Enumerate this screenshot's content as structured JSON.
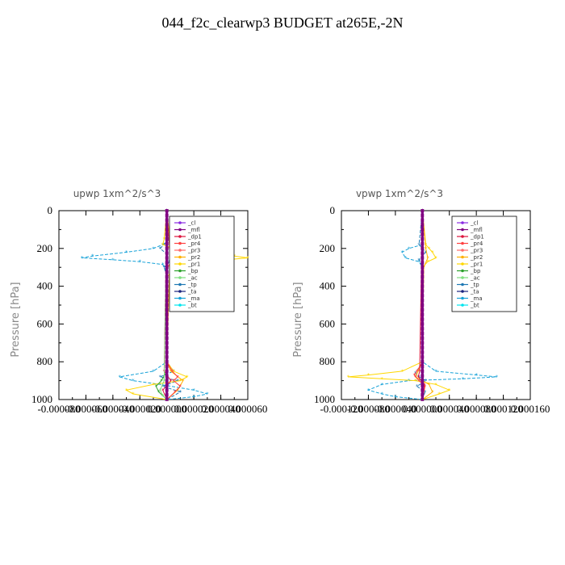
{
  "title": "044_f2c_clearwp3  BUDGET at265E,-2N",
  "legend_labels": [
    "_cl",
    "_mfl",
    "_dp1",
    "_pr4",
    "_pr3",
    "_pr2",
    "_pr1",
    "_bp",
    "_ac",
    "_tp",
    "_ta",
    "_ma",
    "_bt"
  ],
  "series_colors": {
    "_cl": "#8a2be2",
    "_mfl": "#800080",
    "_dp1": "#dc143c",
    "_pr4": "#ff4040",
    "_pr3": "#ff6a6a",
    "_pr2": "#ffb000",
    "_pr1": "#ffd700",
    "_bp": "#2ca02c",
    "_ac": "#7fe07f",
    "_tp": "#1f78b4",
    "_ta": "#1a237e",
    "_ma": "#17a2d8",
    "_bt": "#00e5ee"
  },
  "chart_data": [
    {
      "type": "line",
      "title": "upwp   1xm^2/s^3",
      "ylabel": "Pressure  [hPa]",
      "ylim": [
        1000,
        0
      ],
      "xlim": [
        -8e-05,
        6e-05
      ],
      "y_tick_labels": [
        "0",
        "200",
        "400",
        "600",
        "800",
        "1000"
      ],
      "x_tick_labels": [
        "-0.000080",
        "-0.000060",
        "-0.000040",
        "-0.000020",
        "0.000000",
        "0.000020",
        "0.000040",
        "0.000060"
      ],
      "series": [
        {
          "name": "_ma",
          "y": [
            0,
            100,
            150,
            180,
            200,
            220,
            240,
            250,
            260,
            270,
            285,
            300,
            330,
            350,
            800,
            850,
            880,
            900,
            920,
            950,
            970,
            985,
            1000
          ],
          "x": [
            0,
            0,
            1e-06,
            -3e-06,
            -1e-05,
            -3e-05,
            -5.5e-05,
            -6.3e-05,
            -4e-05,
            -2e-05,
            -3e-06,
            -2e-06,
            0,
            0,
            0,
            -1e-05,
            -3.5e-05,
            -2.5e-05,
            -5e-06,
            2e-05,
            3e-05,
            2e-05,
            0
          ]
        },
        {
          "name": "_tp",
          "y": [
            0,
            150,
            200,
            230,
            250,
            270,
            300,
            350,
            800,
            850,
            880,
            900,
            930,
            960,
            1000
          ],
          "x": [
            0,
            2e-06,
            -5e-06,
            0,
            0,
            2e-06,
            -2e-06,
            0,
            0,
            5e-06,
            -5e-06,
            8e-06,
            -3e-06,
            1e-05,
            0
          ]
        },
        {
          "name": "_pr1",
          "y": [
            0,
            150,
            180,
            200,
            220,
            240,
            250,
            260,
            280,
            300,
            330,
            350,
            800,
            850,
            880,
            900,
            920,
            950,
            970,
            1000
          ],
          "x": [
            0,
            -2e-06,
            -3e-06,
            5e-06,
            3e-05,
            5e-05,
            6e-05,
            4.5e-05,
            2e-05,
            5e-06,
            3e-06,
            0,
            0,
            5e-06,
            1.5e-05,
            1e-05,
            -1e-05,
            -3e-05,
            -2.5e-05,
            0
          ]
        },
        {
          "name": "_pr2",
          "y": [
            0,
            200,
            250,
            300,
            800,
            850,
            900,
            950,
            1000
          ],
          "x": [
            0,
            3e-06,
            8e-06,
            2e-06,
            0,
            3e-06,
            1.2e-05,
            8e-06,
            0
          ]
        },
        {
          "name": "_pr4",
          "y": [
            0,
            200,
            230,
            250,
            270,
            300,
            800,
            850,
            880,
            900,
            930,
            960,
            1000
          ],
          "x": [
            0,
            2e-06,
            6e-06,
            8e-06,
            4e-06,
            0,
            0,
            4e-06,
            8e-06,
            5e-06,
            1e-05,
            6e-06,
            0
          ]
        },
        {
          "name": "_dp1",
          "y": [
            0,
            850,
            900,
            950,
            1000
          ],
          "x": [
            0,
            -2e-06,
            3e-06,
            -3e-06,
            0
          ]
        },
        {
          "name": "_bp",
          "y": [
            0,
            850,
            900,
            930,
            960,
            980,
            1000
          ],
          "x": [
            0,
            0,
            -4e-06,
            -8e-06,
            -6e-06,
            -3e-06,
            0
          ]
        },
        {
          "name": "_ac",
          "y": [
            0,
            900,
            950,
            980,
            1000
          ],
          "x": [
            0,
            -2e-06,
            -5e-06,
            -3e-06,
            0
          ]
        },
        {
          "name": "_ta",
          "y": [
            0,
            1000
          ],
          "x": [
            0,
            0
          ]
        },
        {
          "name": "_bt",
          "y": [
            0,
            1000
          ],
          "x": [
            0,
            0
          ]
        },
        {
          "name": "_cl",
          "y": [
            0,
            1000
          ],
          "x": [
            0,
            0
          ]
        },
        {
          "name": "_mfl",
          "y": [
            0,
            1000
          ],
          "x": [
            0,
            0
          ]
        }
      ]
    },
    {
      "type": "line",
      "title": "vpwp   1xm^2/s^3",
      "ylabel": "Pressure  [hPa]",
      "ylim": [
        1000,
        0
      ],
      "xlim": [
        -0.00012,
        0.00016
      ],
      "y_tick_labels": [
        "0",
        "200",
        "400",
        "600",
        "800",
        "1000"
      ],
      "x_tick_labels": [
        "-0.000120",
        "-0.000080",
        "-0.000040",
        "0.000000",
        "0.000040",
        "0.000080",
        "0.000120",
        "0.000160"
      ],
      "series": [
        {
          "name": "_ma",
          "y": [
            0,
            180,
            200,
            220,
            250,
            270,
            300,
            350,
            800,
            850,
            870,
            880,
            890,
            900,
            920,
            950,
            970,
            985,
            1000
          ],
          "x": [
            0,
            0,
            -2e-05,
            -3e-05,
            -2.5e-05,
            -5e-06,
            0,
            0,
            0,
            2e-05,
            8e-05,
            0.00011,
            6e-05,
            -2e-05,
            -6e-05,
            -8e-05,
            -6e-05,
            -4e-05,
            0
          ]
        },
        {
          "name": "_tp",
          "y": [
            0,
            180,
            220,
            260,
            300,
            800,
            860,
            880,
            900,
            930,
            960,
            1000
          ],
          "x": [
            0,
            -5e-06,
            5e-06,
            -5e-06,
            0,
            0,
            -1e-05,
            -5e-06,
            5e-06,
            -8e-06,
            4e-06,
            0
          ]
        },
        {
          "name": "_pr1",
          "y": [
            0,
            180,
            200,
            220,
            250,
            270,
            300,
            800,
            850,
            870,
            880,
            890,
            900,
            920,
            950,
            970,
            1000
          ],
          "x": [
            0,
            5e-06,
            1e-05,
            1.5e-05,
            2e-05,
            8e-06,
            0,
            0,
            -3e-05,
            -8e-05,
            -0.00011,
            -6e-05,
            -1e-05,
            2e-05,
            4e-05,
            2.5e-05,
            0
          ]
        },
        {
          "name": "_pr2",
          "y": [
            0,
            200,
            250,
            300,
            800,
            880,
            920,
            960,
            1000
          ],
          "x": [
            0,
            5e-06,
            8e-06,
            2e-06,
            0,
            -1e-05,
            1e-05,
            1.5e-05,
            0
          ]
        },
        {
          "name": "_pr4",
          "y": [
            0,
            800,
            850,
            870,
            880,
            900,
            930,
            1000
          ],
          "x": [
            0,
            0,
            -8e-06,
            -1.2e-05,
            -1e-05,
            -5e-06,
            4e-06,
            0
          ]
        },
        {
          "name": "_dp1",
          "y": [
            0,
            850,
            880,
            920,
            1000
          ],
          "x": [
            0,
            -4e-06,
            -6e-06,
            3e-06,
            0
          ]
        },
        {
          "name": "_bp",
          "y": [
            0,
            1000
          ],
          "x": [
            0,
            0
          ]
        },
        {
          "name": "_ac",
          "y": [
            0,
            1000
          ],
          "x": [
            0,
            0
          ]
        },
        {
          "name": "_ta",
          "y": [
            0,
            1000
          ],
          "x": [
            0,
            0
          ]
        },
        {
          "name": "_bt",
          "y": [
            0,
            1000
          ],
          "x": [
            0,
            0
          ]
        },
        {
          "name": "_cl",
          "y": [
            0,
            1000
          ],
          "x": [
            0,
            0
          ]
        },
        {
          "name": "_mfl",
          "y": [
            0,
            1000
          ],
          "x": [
            0,
            0
          ]
        }
      ]
    }
  ]
}
